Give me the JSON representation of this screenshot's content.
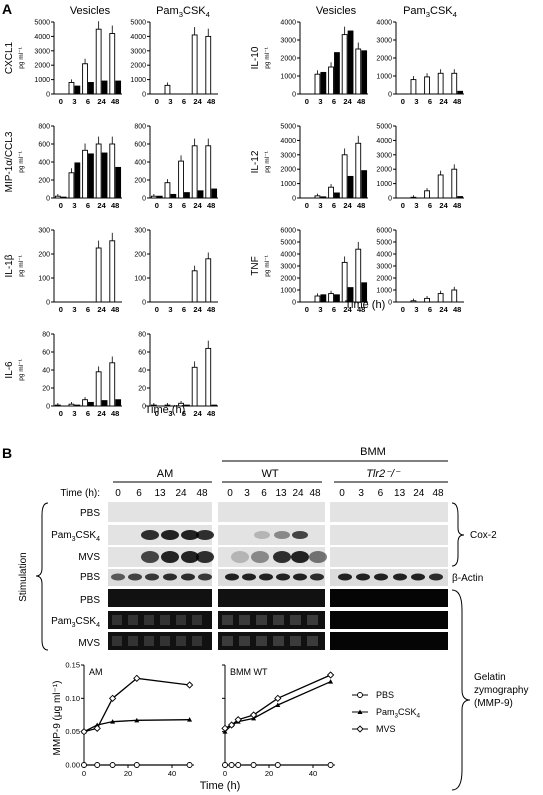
{
  "panelA": {
    "label": "A",
    "colHeaders": {
      "vesicles": "Vesicles",
      "pam": "Pam3CSK4"
    },
    "xTicks": [
      "0",
      "3",
      "6",
      "24",
      "48"
    ],
    "xlabel": "Time (h)",
    "unit": "pg ml⁻¹",
    "note": "Open bars = first series, filled bars = second series; estimated values",
    "left": [
      {
        "name": "CXCL1",
        "ymax": 5000,
        "ticks": [
          0,
          1000,
          2000,
          3000,
          4000,
          5000
        ],
        "ves": {
          "open": [
            0,
            800,
            2100,
            4500,
            4200
          ],
          "filled": [
            0,
            550,
            800,
            900,
            900
          ]
        },
        "pam": {
          "open": [
            0,
            600,
            0,
            4100,
            4000
          ],
          "filled": [
            0,
            0,
            0,
            0,
            0
          ]
        }
      },
      {
        "name": "MIP-1α/CCL3",
        "ymax": 800,
        "ticks": [
          0,
          200,
          400,
          600,
          800
        ],
        "ves": {
          "open": [
            20,
            280,
            530,
            600,
            600
          ],
          "filled": [
            10,
            390,
            490,
            500,
            340
          ]
        },
        "pam": {
          "open": [
            20,
            170,
            410,
            580,
            580
          ],
          "filled": [
            20,
            40,
            60,
            80,
            100
          ]
        }
      },
      {
        "name": "IL-1β",
        "ymax": 300,
        "ticks": [
          0,
          100,
          200,
          300
        ],
        "ves": {
          "open": [
            0,
            0,
            0,
            225,
            255
          ],
          "filled": [
            0,
            0,
            0,
            0,
            0
          ]
        },
        "pam": {
          "open": [
            0,
            0,
            0,
            130,
            180
          ],
          "filled": [
            0,
            0,
            0,
            0,
            0
          ]
        }
      },
      {
        "name": "IL-6",
        "ymax": 80,
        "ticks": [
          0,
          20,
          40,
          60,
          80
        ],
        "ves": {
          "open": [
            1,
            2,
            7,
            38,
            48
          ],
          "filled": [
            0,
            1,
            4,
            6,
            7
          ]
        },
        "pam": {
          "open": [
            1,
            1,
            3,
            43,
            64
          ],
          "filled": [
            0,
            0,
            1,
            0,
            1
          ]
        }
      }
    ],
    "right": [
      {
        "name": "IL-10",
        "ymax": 4000,
        "ticks": [
          0,
          1000,
          2000,
          3000,
          4000
        ],
        "ves": {
          "open": [
            0,
            1100,
            1500,
            3300,
            2500
          ],
          "filled": [
            0,
            1200,
            2300,
            3500,
            2400
          ]
        },
        "pam": {
          "open": [
            0,
            800,
            950,
            1150,
            1150
          ],
          "filled": [
            0,
            0,
            0,
            0,
            150
          ]
        }
      },
      {
        "name": "IL-12",
        "ymax": 5000,
        "ticks": [
          0,
          1000,
          2000,
          3000,
          4000,
          5000
        ],
        "ves": {
          "open": [
            0,
            150,
            750,
            3000,
            3800
          ],
          "filled": [
            0,
            80,
            350,
            1500,
            1900
          ]
        },
        "pam": {
          "open": [
            0,
            50,
            500,
            1600,
            2000
          ],
          "filled": [
            0,
            0,
            0,
            0,
            100
          ]
        }
      },
      {
        "name": "TNF",
        "ymax": 6000,
        "ticks": [
          0,
          1000,
          2000,
          3000,
          4000,
          5000,
          6000
        ],
        "ves": {
          "open": [
            0,
            500,
            700,
            3300,
            4400
          ],
          "filled": [
            0,
            600,
            600,
            1200,
            1600
          ]
        },
        "pam": {
          "open": [
            0,
            100,
            300,
            700,
            1000
          ],
          "filled": [
            0,
            0,
            0,
            0,
            0
          ]
        }
      }
    ]
  },
  "panelB": {
    "label": "B",
    "groupBMM": "BMM",
    "subAM": "AM",
    "subWT": "WT",
    "subTlr": "Tlr2⁻/⁻",
    "timeLabel": "Time (h):",
    "timesAM": [
      "0",
      "6",
      "13",
      "24",
      "48"
    ],
    "timesWT": [
      "0",
      "3",
      "6",
      "13",
      "24",
      "48"
    ],
    "timesTlr": [
      "0",
      "3",
      "6",
      "13",
      "24",
      "48"
    ],
    "rows": [
      "PBS",
      "Pam3CSK4",
      "MVS",
      "PBS"
    ],
    "zymoRows": [
      "PBS",
      "Pam3CSK4",
      "MVS"
    ],
    "stimulation": "Stimulation",
    "cox2": "Cox-2",
    "actin": "β-Actin",
    "gelatin1": "Gelatin",
    "gelatin2": "zymography",
    "gelatin3": "(MMP-9)",
    "chartAM": "AM",
    "chartBMM": "BMM WT",
    "ylabel": "MMP-9 (μg ml⁻¹)",
    "xlabel": "Time (h)",
    "legend": [
      "PBS",
      "Pam3CSK4",
      "MVS"
    ]
  },
  "chart_data": [
    {
      "type": "line",
      "title": "AM",
      "xlabel": "Time (h)",
      "ylabel": "MMP-9 (μg ml⁻¹)",
      "xlim": [
        0,
        50
      ],
      "ylim": [
        0,
        0.15
      ],
      "series": [
        {
          "name": "PBS",
          "x": [
            0,
            6,
            13,
            24,
            48
          ],
          "values": [
            0,
            0,
            0,
            0,
            0
          ]
        },
        {
          "name": "Pam3CSK4",
          "x": [
            0,
            6,
            13,
            24,
            48
          ],
          "values": [
            0.05,
            0.06,
            0.065,
            0.067,
            0.068
          ]
        },
        {
          "name": "MVS",
          "x": [
            0,
            6,
            13,
            24,
            48
          ],
          "values": [
            0.05,
            0.055,
            0.1,
            0.13,
            0.12
          ]
        }
      ]
    },
    {
      "type": "line",
      "title": "BMM WT",
      "xlabel": "Time (h)",
      "ylabel": "MMP-9 (μg ml⁻¹)",
      "xlim": [
        0,
        50
      ],
      "ylim": [
        0,
        0.15
      ],
      "series": [
        {
          "name": "PBS",
          "x": [
            0,
            3,
            6,
            13,
            24,
            48
          ],
          "values": [
            0,
            0,
            0,
            0,
            0,
            0
          ]
        },
        {
          "name": "Pam3CSK4",
          "x": [
            0,
            3,
            6,
            13,
            24,
            48
          ],
          "values": [
            0.05,
            0.06,
            0.065,
            0.07,
            0.09,
            0.125
          ]
        },
        {
          "name": "MVS",
          "x": [
            0,
            3,
            6,
            13,
            24,
            48
          ],
          "values": [
            0.055,
            0.06,
            0.068,
            0.075,
            0.1,
            0.135
          ]
        }
      ]
    }
  ]
}
